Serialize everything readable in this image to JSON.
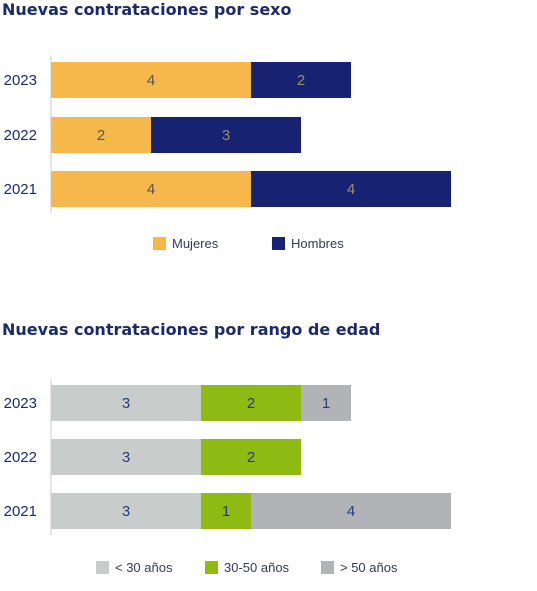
{
  "chart_data": [
    {
      "type": "bar",
      "orientation": "horizontal",
      "stacked": true,
      "title": "Nuevas contrataciones por sexo",
      "categories": [
        "2023",
        "2022",
        "2021"
      ],
      "series": [
        {
          "name": "Mujeres",
          "values": [
            4,
            2,
            4
          ],
          "color": "#f7b84b",
          "label_color": "#555555"
        },
        {
          "name": "Hombres",
          "values": [
            2,
            3,
            4
          ],
          "color": "#172372",
          "label_color": "#9a8e6b"
        }
      ],
      "legend_position": "bottom",
      "grid": false
    },
    {
      "type": "bar",
      "orientation": "horizontal",
      "stacked": true,
      "title": "Nuevas contrataciones por rango de edad",
      "categories": [
        "2023",
        "2022",
        "2021"
      ],
      "series": [
        {
          "name": "< 30 años",
          "values": [
            3,
            3,
            3
          ],
          "color": "#c8ccca",
          "label_color": "#2a3a7a"
        },
        {
          "name": "30-50 años",
          "values": [
            2,
            2,
            1
          ],
          "color": "#8fba14",
          "label_color": "#2a3a7a"
        },
        {
          "name": "> 50 años",
          "values": [
            1,
            0,
            4
          ],
          "color": "#b1b3b6",
          "label_color": "#2a3a7a"
        }
      ],
      "legend_position": "bottom",
      "grid": false
    }
  ]
}
